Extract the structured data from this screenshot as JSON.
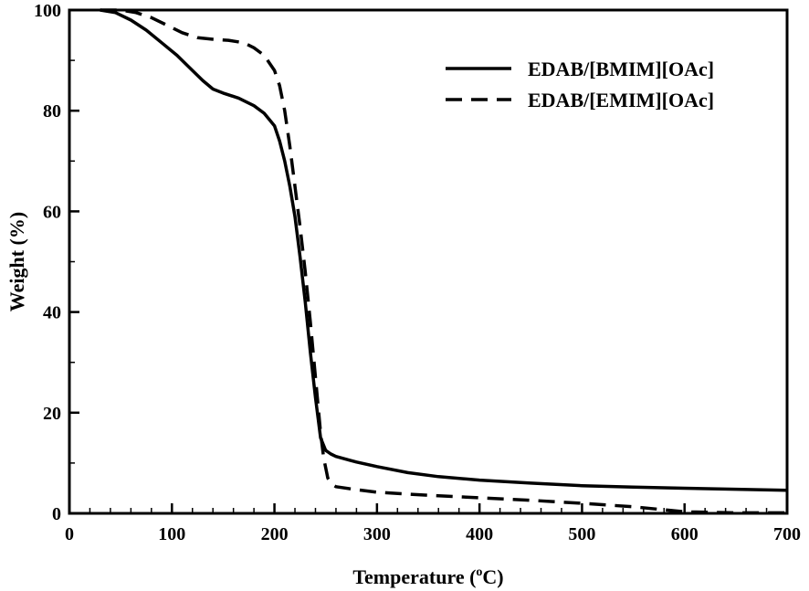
{
  "chart_data": {
    "type": "line",
    "title": "",
    "xlabel": {
      "main": "Temperature (",
      "sup": "o",
      "unit": "C)"
    },
    "ylabel": "Weight (%)",
    "xlim": [
      0,
      700
    ],
    "ylim": [
      0,
      100
    ],
    "x_ticks": [
      0,
      100,
      200,
      300,
      400,
      500,
      600,
      700
    ],
    "y_ticks": [
      0,
      20,
      40,
      60,
      80,
      100
    ],
    "x_minor_step": 20,
    "y_minor_step": 10,
    "grid": false,
    "legend_position": "top-right",
    "series": [
      {
        "name": "EDAB/[BMIM][OAc]",
        "style": "solid",
        "color": "#000000",
        "points": [
          [
            30,
            100
          ],
          [
            45,
            99.5
          ],
          [
            60,
            98
          ],
          [
            75,
            96
          ],
          [
            90,
            93.5
          ],
          [
            105,
            91
          ],
          [
            120,
            88
          ],
          [
            130,
            86
          ],
          [
            140,
            84.3
          ],
          [
            150,
            83.5
          ],
          [
            165,
            82.5
          ],
          [
            180,
            81
          ],
          [
            190,
            79.5
          ],
          [
            200,
            77
          ],
          [
            205,
            74
          ],
          [
            210,
            70
          ],
          [
            215,
            65
          ],
          [
            220,
            59
          ],
          [
            225,
            51
          ],
          [
            230,
            42
          ],
          [
            235,
            32
          ],
          [
            240,
            23
          ],
          [
            245,
            15
          ],
          [
            250,
            12.5
          ],
          [
            255,
            11.8
          ],
          [
            260,
            11.3
          ],
          [
            280,
            10.2
          ],
          [
            300,
            9.3
          ],
          [
            330,
            8.1
          ],
          [
            360,
            7.3
          ],
          [
            400,
            6.6
          ],
          [
            450,
            6.0
          ],
          [
            500,
            5.5
          ],
          [
            550,
            5.2
          ],
          [
            600,
            5.0
          ],
          [
            650,
            4.8
          ],
          [
            700,
            4.6
          ]
        ]
      },
      {
        "name": "EDAB/[EMIM][OAc]",
        "style": "dashed",
        "color": "#000000",
        "points": [
          [
            30,
            100
          ],
          [
            50,
            100
          ],
          [
            65,
            99.5
          ],
          [
            80,
            98.5
          ],
          [
            95,
            97
          ],
          [
            110,
            95.5
          ],
          [
            125,
            94.5
          ],
          [
            140,
            94.2
          ],
          [
            155,
            94
          ],
          [
            170,
            93.5
          ],
          [
            180,
            92.5
          ],
          [
            190,
            91
          ],
          [
            200,
            88
          ],
          [
            205,
            85
          ],
          [
            210,
            80
          ],
          [
            215,
            73
          ],
          [
            220,
            65
          ],
          [
            225,
            57
          ],
          [
            230,
            48
          ],
          [
            235,
            38
          ],
          [
            240,
            27
          ],
          [
            245,
            16
          ],
          [
            248,
            11
          ],
          [
            252,
            7
          ],
          [
            256,
            5.8
          ],
          [
            260,
            5.3
          ],
          [
            280,
            4.7
          ],
          [
            300,
            4.2
          ],
          [
            350,
            3.6
          ],
          [
            400,
            3.1
          ],
          [
            450,
            2.6
          ],
          [
            500,
            2.0
          ],
          [
            550,
            1.3
          ],
          [
            580,
            0.7
          ],
          [
            600,
            0.3
          ],
          [
            650,
            0.1
          ],
          [
            700,
            0.1
          ]
        ]
      }
    ]
  }
}
